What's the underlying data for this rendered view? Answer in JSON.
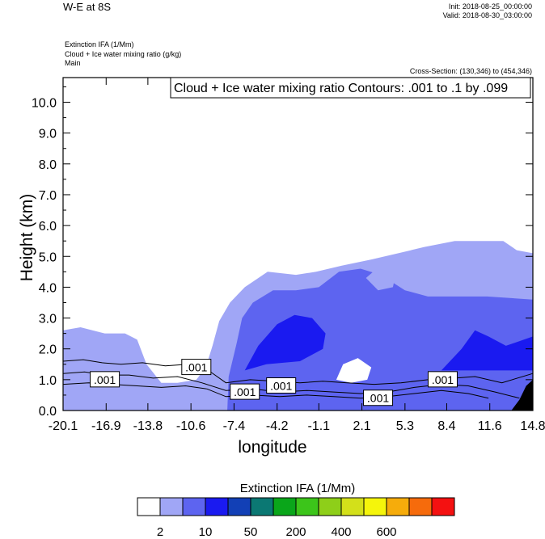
{
  "header": {
    "title_left": "W-E at 8S",
    "init": "Init: 2018-08-25_00:00:00",
    "valid": "Valid: 2018-08-30_03:00:00",
    "fields": [
      "Extinction IFA   (1/Mm)",
      "Cloud + Ice water mixing ratio   (g/kg)",
      "Main"
    ],
    "cross_section": "Cross-Section: (130,346) to (454,346)",
    "contour_note": "Cloud + Ice water mixing ratio Contours: .001 to .1 by .099"
  },
  "colors": {
    "fill_levels": [
      "#ffffff",
      "#a0a6f6",
      "#5d64f0",
      "#1a1af0",
      "#1240b6",
      "#0b7873",
      "#0aa61a",
      "#3cc51a",
      "#8ecf19",
      "#d3e01a",
      "#f5f50b",
      "#f6ac0b",
      "#f66b0c",
      "#f41111"
    ],
    "terrain": "#000000",
    "contour": "#000000"
  },
  "chart_data": {
    "type": "contour cross-section",
    "xlabel": "longitude",
    "ylabel": "Height (km)",
    "x_ticks": [
      "-20.1",
      "-16.9",
      "-13.8",
      "-10.6",
      "-7.4",
      "-4.2",
      "-1.1",
      "2.1",
      "5.3",
      "8.4",
      "11.6",
      "14.8"
    ],
    "x_range": [
      -20.1,
      14.8
    ],
    "y_ticks": [
      "0.0",
      "1.0",
      "2.0",
      "3.0",
      "4.0",
      "5.0",
      "6.0",
      "7.0",
      "8.0",
      "9.0",
      "10.0"
    ],
    "y_range": [
      0,
      10.8
    ],
    "contour_labels": [
      {
        "text": ".001",
        "x": -17.0,
        "y": 1.0
      },
      {
        "text": ".001",
        "x": -10.2,
        "y": 1.4
      },
      {
        "text": ".001",
        "x": -6.6,
        "y": 0.6
      },
      {
        "text": ".001",
        "x": -3.9,
        "y": 0.8
      },
      {
        "text": ".001",
        "x": 3.3,
        "y": 0.4
      },
      {
        "text": ".001",
        "x": 8.1,
        "y": 1.0
      }
    ],
    "colorbar": {
      "title": "Extinction IFA  (1/Mm)",
      "labels": [
        "2",
        "10",
        "50",
        "200",
        "400",
        "600"
      ]
    },
    "extinction_regions": {
      "level_1": [
        [
          -20.1,
          0
        ],
        [
          -20.1,
          2.6
        ],
        [
          -18.8,
          2.7
        ],
        [
          -17.0,
          2.5
        ],
        [
          -15.5,
          2.5
        ],
        [
          -14.6,
          2.3
        ],
        [
          -13.9,
          1.5
        ],
        [
          -12.8,
          0.9
        ],
        [
          -11.6,
          0.9
        ],
        [
          -10.2,
          1.0
        ],
        [
          -9.5,
          1.4
        ],
        [
          -9.0,
          2.1
        ],
        [
          -8.5,
          2.9
        ],
        [
          -7.7,
          3.5
        ],
        [
          -6.6,
          4.0
        ],
        [
          -4.9,
          4.5
        ],
        [
          -2.8,
          4.4
        ],
        [
          -1.3,
          4.5
        ],
        [
          0.6,
          4.7
        ],
        [
          2.8,
          4.9
        ],
        [
          4.8,
          5.1
        ],
        [
          6.7,
          5.3
        ],
        [
          9.0,
          5.5
        ],
        [
          11.3,
          5.5
        ],
        [
          12.6,
          5.5
        ],
        [
          13.6,
          5.2
        ],
        [
          14.8,
          5.1
        ],
        [
          14.8,
          0
        ]
      ],
      "level_2": [
        [
          -7.9,
          0
        ],
        [
          -7.8,
          1.1
        ],
        [
          -7.2,
          2.2
        ],
        [
          -6.8,
          3.0
        ],
        [
          -6.0,
          3.5
        ],
        [
          -4.5,
          3.9
        ],
        [
          -2.8,
          3.9
        ],
        [
          -1.1,
          4.0
        ],
        [
          0.4,
          4.5
        ],
        [
          2.0,
          4.6
        ],
        [
          3.5,
          4.4
        ],
        [
          5.3,
          3.9
        ],
        [
          7.0,
          3.7
        ],
        [
          9.3,
          3.7
        ],
        [
          11.4,
          3.7
        ],
        [
          14.8,
          3.6
        ],
        [
          14.8,
          0
        ]
      ],
      "level_3": [
        [
          -6.6,
          1.3
        ],
        [
          -5.6,
          2.1
        ],
        [
          -4.2,
          2.8
        ],
        [
          -2.9,
          3.1
        ],
        [
          -1.6,
          3.0
        ],
        [
          -0.6,
          2.5
        ],
        [
          -0.8,
          2.0
        ],
        [
          -2.5,
          1.6
        ],
        [
          -5.0,
          1.5
        ]
      ],
      "level_3b": [
        [
          8.0,
          1.3
        ],
        [
          9.5,
          2.0
        ],
        [
          10.5,
          2.6
        ],
        [
          11.5,
          2.4
        ],
        [
          12.8,
          2.1
        ],
        [
          14.8,
          2.4
        ],
        [
          14.8,
          1.3
        ]
      ],
      "white_pocket": [
        [
          0.2,
          1.0
        ],
        [
          0.7,
          1.5
        ],
        [
          1.8,
          1.7
        ],
        [
          2.8,
          1.4
        ],
        [
          2.5,
          1.0
        ],
        [
          1.3,
          0.9
        ]
      ],
      "white_pocket_2": [
        [
          2.4,
          4.3
        ],
        [
          3.2,
          4.6
        ],
        [
          4.6,
          4.4
        ],
        [
          4.4,
          4.0
        ],
        [
          3.3,
          3.9
        ]
      ]
    },
    "contour_lines": [
      [
        [
          -20.1,
          1.6
        ],
        [
          -18.6,
          1.65
        ],
        [
          -17.2,
          1.55
        ],
        [
          -15.8,
          1.5
        ],
        [
          -14.2,
          1.55
        ],
        [
          -12.5,
          1.45
        ],
        [
          -10.8,
          1.5
        ],
        [
          -9.3,
          1.3
        ],
        [
          -8.0,
          0.9
        ],
        [
          -6.2,
          1.0
        ],
        [
          -4.3,
          0.95
        ],
        [
          -2.5,
          0.9
        ],
        [
          -0.8,
          0.95
        ],
        [
          1.0,
          0.9
        ],
        [
          3.0,
          0.85
        ],
        [
          5.0,
          0.9
        ],
        [
          7.0,
          1.0
        ],
        [
          9.0,
          1.05
        ],
        [
          10.5,
          1.1
        ],
        [
          12.5,
          0.9
        ],
        [
          14.8,
          1.2
        ]
      ],
      [
        [
          -20.1,
          1.2
        ],
        [
          -18.5,
          1.25
        ],
        [
          -17.0,
          1.15
        ],
        [
          -15.2,
          1.15
        ],
        [
          -13.4,
          1.05
        ],
        [
          -11.6,
          1.1
        ],
        [
          -9.8,
          0.9
        ],
        [
          -8.0,
          0.65
        ],
        [
          -6.0,
          0.7
        ],
        [
          -4.0,
          0.6
        ],
        [
          -2.0,
          0.65
        ],
        [
          0.0,
          0.6
        ],
        [
          2.0,
          0.55
        ],
        [
          4.0,
          0.6
        ],
        [
          6.0,
          0.75
        ],
        [
          8.0,
          0.85
        ],
        [
          10.0,
          0.8
        ],
        [
          12.0,
          0.6
        ],
        [
          13.8,
          0.4
        ]
      ],
      [
        [
          -20.1,
          0.85
        ],
        [
          -18.2,
          0.9
        ],
        [
          -16.5,
          0.85
        ],
        [
          -14.6,
          0.8
        ],
        [
          -12.8,
          0.75
        ],
        [
          -11.0,
          0.8
        ],
        [
          -9.4,
          0.7
        ],
        [
          -8.0,
          0.45
        ],
        [
          -6.0,
          0.5
        ],
        [
          -4.0,
          0.45
        ],
        [
          -2.0,
          0.5
        ],
        [
          0.0,
          0.45
        ],
        [
          2.0,
          0.4
        ],
        [
          4.0,
          0.45
        ],
        [
          6.0,
          0.55
        ],
        [
          8.0,
          0.65
        ],
        [
          10.0,
          0.55
        ],
        [
          11.5,
          0.4
        ]
      ]
    ],
    "terrain_polygon": [
      [
        13.2,
        0
      ],
      [
        13.8,
        0.35
      ],
      [
        14.3,
        0.8
      ],
      [
        14.8,
        1.0
      ],
      [
        14.8,
        0
      ]
    ]
  }
}
